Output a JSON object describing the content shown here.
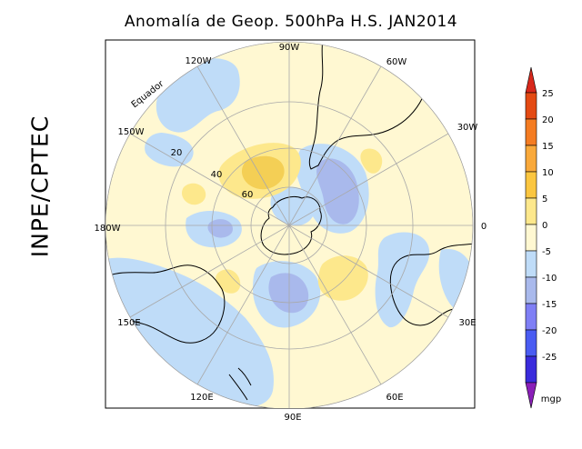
{
  "title": "Anomalía de Geop. 500hPa H.S. JAN2014",
  "brand": "INPE/CPTEC",
  "map": {
    "projection": "polar stereographic, south pole",
    "longitude_labels": [
      "90W",
      "60W",
      "30W",
      "0",
      "30E",
      "60E",
      "90E",
      "120E",
      "150E",
      "180W",
      "150W",
      "120W"
    ],
    "latitude_labels": [
      "20",
      "40",
      "60"
    ],
    "equator_label": "Equador",
    "fill_colors": {
      "neutral": "#fff8d2",
      "neg_weak": "#bfdcf8",
      "neg_mod": "#a9b9ec",
      "pos_weak": "#fde88c",
      "pos_mod": "#f4cf55"
    }
  },
  "colorbar": {
    "unit": "mgp",
    "levels": [
      "25",
      "20",
      "15",
      "10",
      "5",
      "0",
      "-5",
      "-10",
      "-15",
      "-20",
      "-25"
    ],
    "colors": [
      "#e44a13",
      "#f47c22",
      "#f9a93b",
      "#fbc640",
      "#fde88c",
      "#fff8d2",
      "#bfdcf8",
      "#a9b9ec",
      "#7f7ff5",
      "#4a5cf2",
      "#3a2bdc",
      "#8f2bc0"
    ],
    "top_arrow_color": "#d8281c",
    "bottom_arrow_color": "#8a1fb8"
  }
}
